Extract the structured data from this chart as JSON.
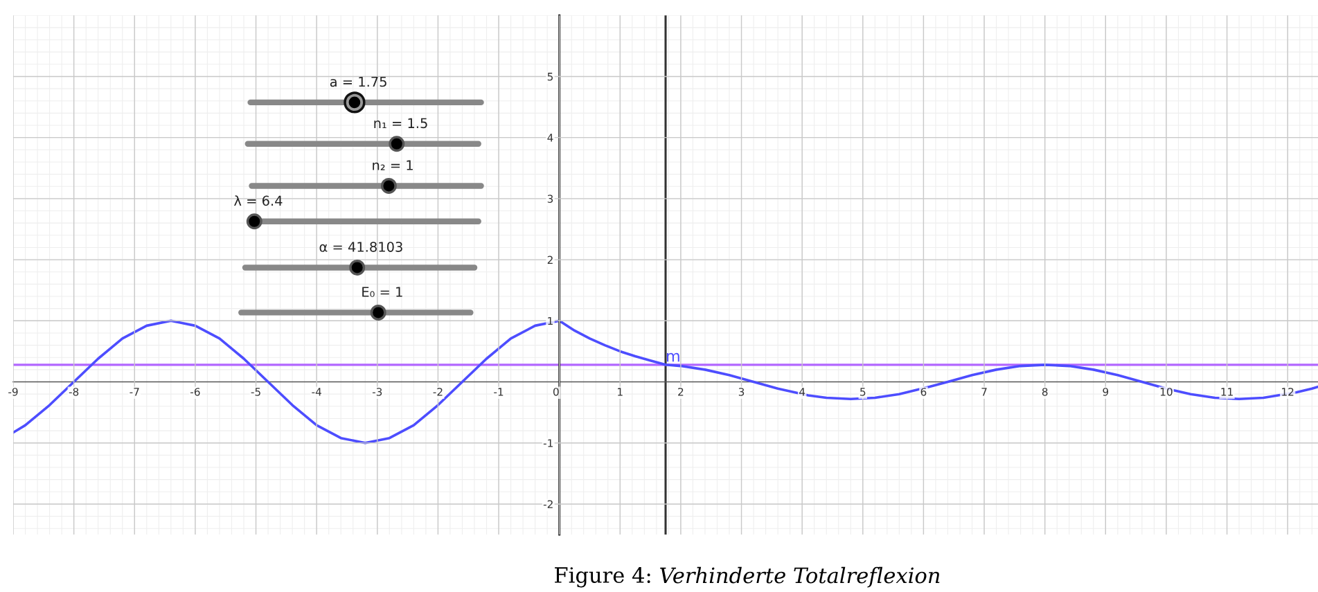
{
  "chart_data": {
    "type": "line",
    "title": "Figure 4: Verhinderte Totalreflexion",
    "x": [
      -9.0,
      -8.8,
      -8.4,
      -8.0,
      -7.6,
      -7.2,
      -6.8,
      -6.4,
      -6.0,
      -5.6,
      -5.2,
      -4.8,
      -4.4,
      -4.0,
      -3.6,
      -3.2,
      -2.8,
      -2.4,
      -2.0,
      -1.6,
      -1.2,
      -0.8,
      -0.4,
      0,
      0.25,
      0.5,
      0.75,
      1.0,
      1.25,
      1.5,
      1.75,
      2.0,
      2.4,
      2.8,
      3.2,
      3.6,
      4.1,
      4.4,
      4.8,
      5.2,
      5.6,
      6.1,
      6.4,
      6.8,
      7.2,
      7.6,
      8.0,
      8.4,
      8.8,
      9.2,
      9.6,
      10.0,
      10.4,
      10.8,
      11.2,
      11.6,
      12.15,
      12.4,
      12.5
    ],
    "series": [
      {
        "color": "#4d4dff",
        "values": [
          -0.83,
          -0.71,
          -0.38,
          0,
          0.38,
          0.71,
          0.92,
          1,
          0.92,
          0.71,
          0.38,
          0,
          -0.38,
          -0.71,
          -0.92,
          -1,
          -0.92,
          -0.71,
          -0.38,
          0,
          0.38,
          0.71,
          0.92,
          1,
          0.84,
          0.71,
          0.6,
          0.5,
          0.42,
          0.35,
          0.28,
          0.26,
          0.2,
          0.11,
          0,
          -0.11,
          -0.22,
          -0.26,
          -0.28,
          -0.26,
          -0.2,
          -0.08,
          0,
          0.11,
          0.2,
          0.26,
          0.28,
          0.26,
          0.2,
          0.11,
          0,
          -0.11,
          -0.2,
          -0.26,
          -0.28,
          -0.26,
          -0.17,
          -0.11,
          -0.08
        ]
      }
    ],
    "xlim": [
      -9.0,
      12.5
    ],
    "ylim": [
      -2.5,
      6.0
    ],
    "xticks": [
      -9,
      -8,
      -7,
      -6,
      -5,
      -4,
      -3,
      -2,
      -1,
      0,
      1,
      2,
      3,
      4,
      5,
      6,
      7,
      8,
      9,
      10,
      11,
      12
    ],
    "yticks": [
      -2,
      -1,
      1,
      2,
      3,
      4,
      5
    ],
    "grid": true,
    "marker": "none",
    "line_style": "solid",
    "ref_lines": [
      {
        "axis": "x",
        "value": 1.75,
        "color": "#333333"
      },
      {
        "axis": "y",
        "value": 0.28,
        "label": "m",
        "color": "#b266ff"
      }
    ],
    "annotations": [
      "a = 1.75",
      "n₁ = 1.5",
      "n₂ = 1",
      "λ = 6.4",
      "α = 41.8103",
      "E₀ = 1"
    ]
  }
}
